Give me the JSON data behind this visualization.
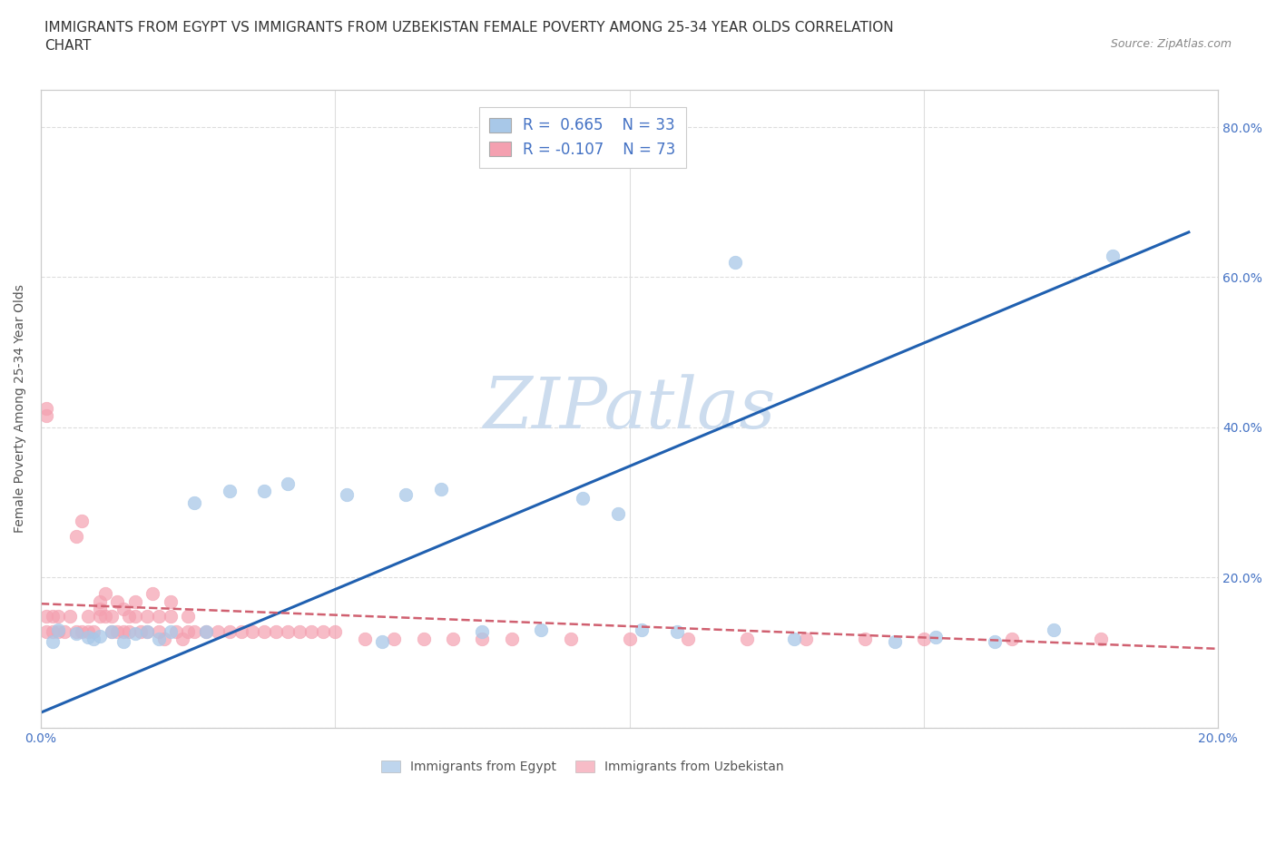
{
  "title_line1": "IMMIGRANTS FROM EGYPT VS IMMIGRANTS FROM UZBEKISTAN FEMALE POVERTY AMONG 25-34 YEAR OLDS CORRELATION",
  "title_line2": "CHART",
  "source_text": "Source: ZipAtlas.com",
  "ylabel": "Female Poverty Among 25-34 Year Olds",
  "egypt_R": 0.665,
  "egypt_N": 33,
  "uzbekistan_R": -0.107,
  "uzbekistan_N": 73,
  "egypt_color": "#a8c8e8",
  "uzbekistan_color": "#f4a0b0",
  "egypt_trend_color": "#2060b0",
  "uzbekistan_trend_color": "#d06070",
  "watermark_color": "#ccdcee",
  "xlim": [
    0.0,
    0.2
  ],
  "ylim": [
    0.0,
    0.85
  ],
  "xticks": [
    0.0,
    0.05,
    0.1,
    0.15,
    0.2
  ],
  "yticks": [
    0.0,
    0.2,
    0.4,
    0.6,
    0.8
  ],
  "ytick_labels": [
    "",
    "20.0%",
    "40.0%",
    "60.0%",
    "80.0%"
  ],
  "xtick_labels": [
    "0.0%",
    "",
    "",
    "",
    "20.0%"
  ],
  "egypt_scatter_x": [
    0.002,
    0.003,
    0.006,
    0.008,
    0.009,
    0.01,
    0.012,
    0.014,
    0.016,
    0.018,
    0.02,
    0.022,
    0.026,
    0.028,
    0.032,
    0.038,
    0.042,
    0.052,
    0.058,
    0.062,
    0.068,
    0.075,
    0.085,
    0.092,
    0.098,
    0.102,
    0.108,
    0.118,
    0.128,
    0.145,
    0.152,
    0.162,
    0.172,
    0.182
  ],
  "egypt_scatter_y": [
    0.115,
    0.13,
    0.125,
    0.12,
    0.118,
    0.122,
    0.128,
    0.115,
    0.125,
    0.128,
    0.118,
    0.128,
    0.3,
    0.128,
    0.315,
    0.315,
    0.325,
    0.31,
    0.115,
    0.31,
    0.318,
    0.128,
    0.13,
    0.305,
    0.285,
    0.13,
    0.128,
    0.62,
    0.118,
    0.115,
    0.12,
    0.115,
    0.13,
    0.628
  ],
  "uzbekistan_scatter_x": [
    0.001,
    0.001,
    0.001,
    0.001,
    0.002,
    0.002,
    0.003,
    0.003,
    0.004,
    0.005,
    0.006,
    0.006,
    0.007,
    0.007,
    0.008,
    0.008,
    0.009,
    0.01,
    0.01,
    0.01,
    0.011,
    0.011,
    0.012,
    0.012,
    0.013,
    0.013,
    0.014,
    0.014,
    0.015,
    0.015,
    0.016,
    0.016,
    0.017,
    0.018,
    0.018,
    0.019,
    0.02,
    0.02,
    0.021,
    0.022,
    0.022,
    0.023,
    0.024,
    0.025,
    0.025,
    0.026,
    0.028,
    0.03,
    0.032,
    0.034,
    0.036,
    0.038,
    0.04,
    0.042,
    0.044,
    0.046,
    0.048,
    0.05,
    0.055,
    0.06,
    0.065,
    0.07,
    0.075,
    0.08,
    0.09,
    0.1,
    0.11,
    0.12,
    0.13,
    0.14,
    0.15,
    0.165,
    0.18
  ],
  "uzbekistan_scatter_y": [
    0.128,
    0.148,
    0.415,
    0.425,
    0.128,
    0.148,
    0.128,
    0.148,
    0.128,
    0.148,
    0.128,
    0.255,
    0.128,
    0.275,
    0.128,
    0.148,
    0.128,
    0.148,
    0.158,
    0.168,
    0.148,
    0.178,
    0.128,
    0.148,
    0.128,
    0.168,
    0.128,
    0.158,
    0.128,
    0.148,
    0.148,
    0.168,
    0.128,
    0.128,
    0.148,
    0.178,
    0.128,
    0.148,
    0.118,
    0.148,
    0.168,
    0.128,
    0.118,
    0.128,
    0.148,
    0.128,
    0.128,
    0.128,
    0.128,
    0.128,
    0.128,
    0.128,
    0.128,
    0.128,
    0.128,
    0.128,
    0.128,
    0.128,
    0.118,
    0.118,
    0.118,
    0.118,
    0.118,
    0.118,
    0.118,
    0.118,
    0.118,
    0.118,
    0.118,
    0.118,
    0.118,
    0.118,
    0.118
  ],
  "egypt_trend_x": [
    0.0,
    0.195
  ],
  "egypt_trend_y": [
    0.02,
    0.66
  ],
  "uzbekistan_trend_x": [
    0.0,
    0.2
  ],
  "uzbekistan_trend_y": [
    0.165,
    0.105
  ],
  "grid_color": "#dddddd",
  "title_fontsize": 11,
  "axis_label_fontsize": 10,
  "tick_fontsize": 10
}
